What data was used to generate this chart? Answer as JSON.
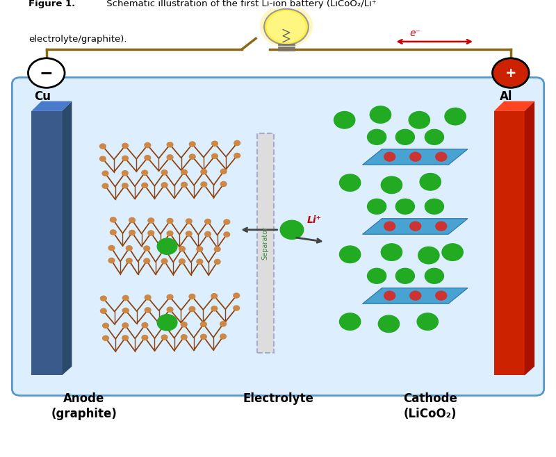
{
  "fig_width": 8.0,
  "fig_height": 6.58,
  "dpi": 100,
  "box_color": "#ddeeff",
  "box_edge_color": "#5599cc",
  "anode_color": "#3a5a8c",
  "anode_light": "#4a7acc",
  "anode_dark": "#2a4a6c",
  "cathode_color": "#cc2200",
  "cathode_light": "#ff4422",
  "cathode_dark": "#aa1100",
  "cu_label": "Cu",
  "al_label": "Al",
  "anode_label1": "Anode",
  "anode_label2": "(graphite)",
  "cathode_label1": "Cathode",
  "cathode_label2": "(LiCoO₂)",
  "electrolyte_label": "Electrolyte",
  "separator_label": "Separator",
  "li_ion_label": "Li⁺",
  "electron_label": "e⁻",
  "pos_terminal_color": "#cc2200",
  "wire_color": "#8B6914",
  "graphite_line_color": "#8B4513",
  "graphite_node_color": "#cc8844",
  "li_ion_color": "#22aa22",
  "cobalt_layer_color": "#3399cc",
  "cobalt_node_color": "#cc3333",
  "separator_color": "#dddddd",
  "separator_edge_color": "#aaaacc"
}
